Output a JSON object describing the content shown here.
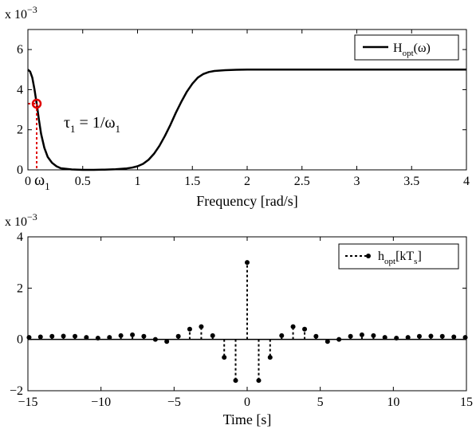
{
  "chart_data": [
    {
      "type": "line",
      "title": "",
      "xlabel": "Frequency [rad/s]",
      "ylabel": "",
      "exponent_label": {
        "base": "x 10",
        "power": "−3"
      },
      "xlim": [
        0,
        4
      ],
      "ylim": [
        0,
        7
      ],
      "xticks": [
        0,
        0.5,
        1,
        1.5,
        2,
        2.5,
        3,
        3.5,
        4
      ],
      "xtick_labels": [
        "0",
        "0.5",
        "1",
        "1.5",
        "2",
        "2.5",
        "3",
        "3.5",
        "4"
      ],
      "yticks": [
        0,
        2,
        4,
        6
      ],
      "ytick_labels": [
        "0",
        "2",
        "4",
        "6"
      ],
      "grid": false,
      "legend": {
        "placement": "top-right",
        "entry": {
          "main": "H",
          "sub": "opt",
          "tail": "(ω)"
        }
      },
      "series": [
        {
          "name": "H_opt(ω)",
          "color": "#000000",
          "x": [
            0,
            0.02,
            0.04,
            0.06,
            0.08,
            0.1,
            0.12,
            0.15,
            0.18,
            0.22,
            0.26,
            0.3,
            0.4,
            0.5,
            0.6,
            0.7,
            0.8,
            0.9,
            0.95,
            1.0,
            1.05,
            1.1,
            1.15,
            1.2,
            1.25,
            1.3,
            1.35,
            1.4,
            1.45,
            1.5,
            1.55,
            1.6,
            1.65,
            1.7,
            1.8,
            1.9,
            2.0,
            2.5,
            3.0,
            3.5,
            4.0
          ],
          "y": [
            5.0,
            4.9,
            4.6,
            4.0,
            3.3,
            2.5,
            1.8,
            1.1,
            0.65,
            0.35,
            0.18,
            0.08,
            0.02,
            0.0,
            0.0,
            0.01,
            0.03,
            0.07,
            0.11,
            0.18,
            0.3,
            0.5,
            0.8,
            1.2,
            1.7,
            2.25,
            2.85,
            3.4,
            3.9,
            4.3,
            4.6,
            4.78,
            4.88,
            4.93,
            4.97,
            4.99,
            5.0,
            5.0,
            5.0,
            5.0,
            5.0
          ]
        }
      ],
      "marker": {
        "x": 0.08,
        "y": 3.3,
        "color": "#e00000"
      },
      "annotations": {
        "tau": {
          "main": "τ",
          "sub1": "1",
          "mid": " = 1/ω",
          "sub2": "1"
        },
        "omega": {
          "main": "ω",
          "sub": "1"
        }
      }
    },
    {
      "type": "stem",
      "title": "",
      "xlabel": "Time [s]",
      "ylabel": "",
      "exponent_label": {
        "base": "x 10",
        "power": "−3"
      },
      "xlim": [
        -15,
        15
      ],
      "ylim": [
        -2,
        4
      ],
      "xticks": [
        -15,
        -10,
        -5,
        0,
        5,
        10,
        15
      ],
      "xtick_labels": [
        "−15",
        "−10",
        "−5",
        "0",
        "5",
        "10",
        "15"
      ],
      "yticks": [
        -2,
        0,
        2,
        4
      ],
      "ytick_labels": [
        "−2",
        "0",
        "2",
        "4"
      ],
      "grid": false,
      "legend": {
        "placement": "top-right",
        "entry": {
          "main": "h",
          "sub": "opt",
          "tail": "[kT",
          "sub2": "s",
          "tail2": "]"
        }
      },
      "series": [
        {
          "name": "h_opt[kT_s]",
          "color": "#000000",
          "x": [
            -14.92,
            -14.14,
            -13.35,
            -12.57,
            -11.78,
            -11.0,
            -10.21,
            -9.42,
            -8.64,
            -7.85,
            -7.07,
            -6.28,
            -5.5,
            -4.71,
            -3.93,
            -3.14,
            -2.36,
            -1.57,
            -0.79,
            0,
            0.79,
            1.57,
            2.36,
            3.14,
            3.93,
            4.71,
            5.5,
            6.28,
            7.07,
            7.85,
            8.64,
            9.42,
            10.21,
            11.0,
            11.78,
            12.57,
            13.35,
            14.14,
            14.92
          ],
          "values": [
            0.08,
            0.1,
            0.12,
            0.13,
            0.12,
            0.08,
            0.05,
            0.08,
            0.15,
            0.18,
            0.12,
            0.0,
            -0.08,
            0.12,
            0.4,
            0.5,
            0.15,
            -0.7,
            -1.6,
            3.0,
            -1.6,
            -0.7,
            0.15,
            0.5,
            0.4,
            0.12,
            -0.08,
            0.0,
            0.12,
            0.18,
            0.15,
            0.08,
            0.05,
            0.08,
            0.12,
            0.13,
            0.12,
            0.1,
            0.08
          ]
        }
      ]
    }
  ]
}
